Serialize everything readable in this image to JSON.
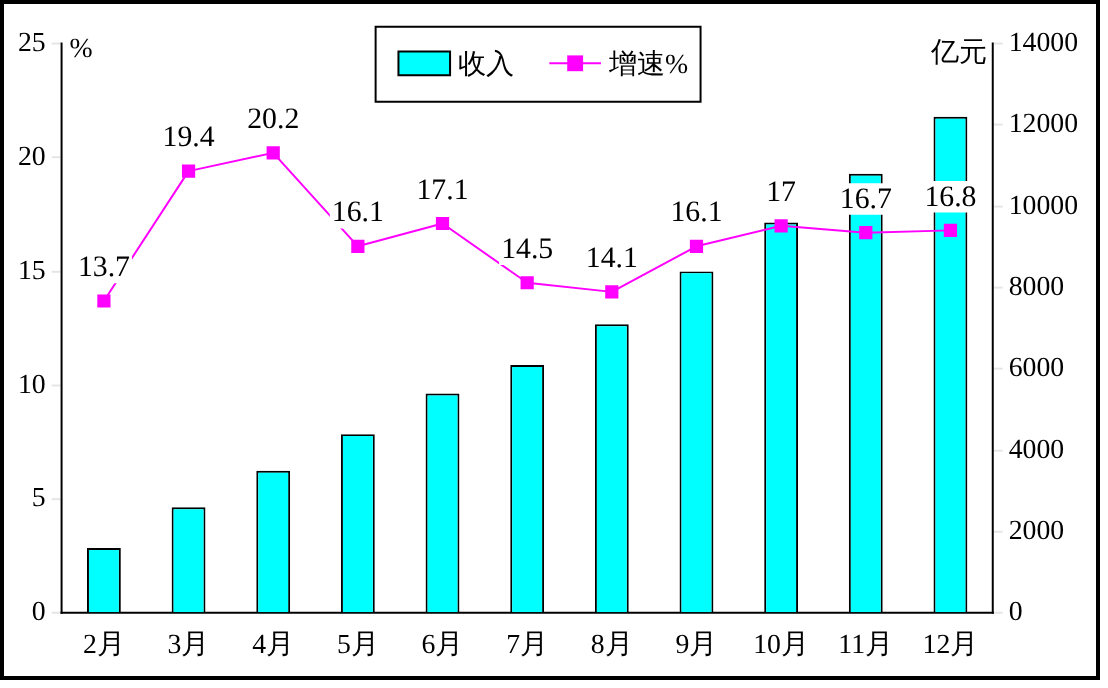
{
  "chart_data": {
    "type": "bar",
    "categories": [
      "2月",
      "3月",
      "4月",
      "5月",
      "6月",
      "7月",
      "8月",
      "9月",
      "10月",
      "11月",
      "12月"
    ],
    "series": [
      {
        "name": "收入",
        "axis": "y2",
        "color": "#00ffff",
        "values": [
          1600,
          2600,
          3500,
          4400,
          5400,
          6100,
          7100,
          8400,
          9600,
          10800,
          12200
        ]
      },
      {
        "name": "增速%",
        "type": "line",
        "color": "#ff00ff",
        "values": [
          13.7,
          19.4,
          20.2,
          16.1,
          17.1,
          14.5,
          14.1,
          16.1,
          17,
          16.7,
          16.8
        ],
        "value_labels": [
          "13.7",
          "19.4",
          "20.2",
          "16.1",
          "17.1",
          "14.5",
          "14.1",
          "16.1",
          "17",
          "16.7",
          "16.8"
        ]
      }
    ],
    "ylabel": "%",
    "y2label": "亿元",
    "ylim": [
      0,
      25
    ],
    "yticks": [
      0,
      5,
      10,
      15,
      20,
      25
    ],
    "y2lim": [
      0,
      14000
    ],
    "y2ticks": [
      0,
      2000,
      4000,
      6000,
      8000,
      10000,
      12000,
      14000
    ],
    "legend": "top",
    "marker": "square"
  }
}
